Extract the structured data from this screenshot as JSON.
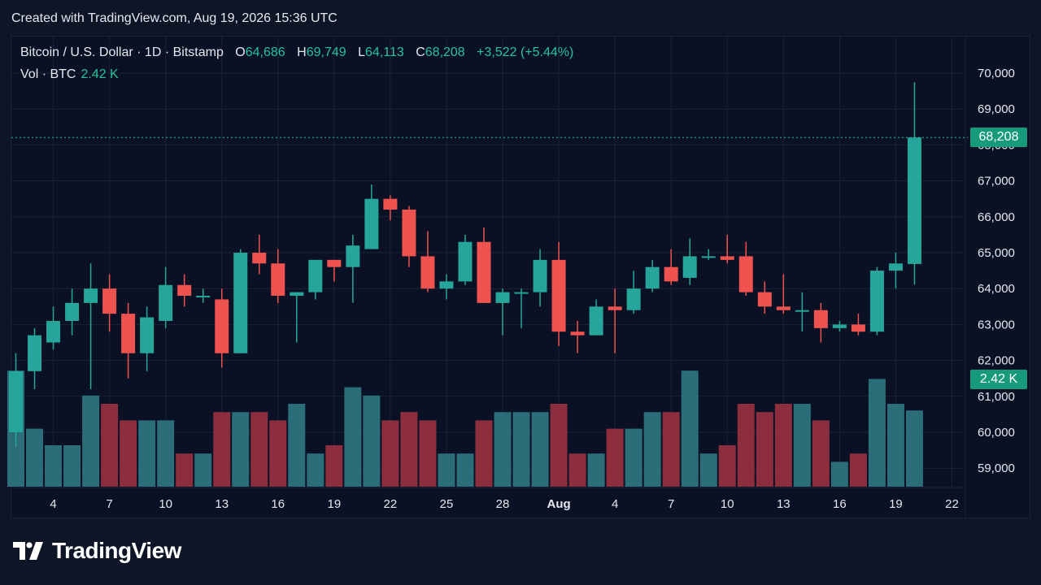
{
  "created_line": "Created with TradingView.com, Aug 19, 2026 15:36 UTC",
  "legend": {
    "symbol": "Bitcoin / U.S. Dollar · 1D · Bitstamp",
    "o_label": "O",
    "o_value": "64,686",
    "h_label": "H",
    "h_value": "69,749",
    "l_label": "L",
    "l_value": "64,113",
    "c_label": "C",
    "c_value": "68,208",
    "change": "+3,522 (+5.44%)",
    "vol_label": "Vol · BTC",
    "vol_value": "2.42 K"
  },
  "price_badge": "68,208",
  "volume_badge": "2.42 K",
  "logo_text": "TradingView",
  "colors": {
    "up": "#26a69a",
    "down": "#ef5350",
    "up_volume": "#2b6d78",
    "down_volume": "#8c2e3d",
    "background": "#0a1124",
    "price_line": "#26c49a"
  },
  "chart_data": {
    "type": "candlestick",
    "y_axis_ticks": [
      "70,000",
      "69,000",
      "68,000",
      "67,000",
      "66,000",
      "65,000",
      "64,000",
      "63,000",
      "62,000",
      "61,000",
      "60,000",
      "59,000"
    ],
    "x_axis_ticks": [
      "4",
      "7",
      "10",
      "13",
      "16",
      "19",
      "22",
      "25",
      "28",
      "Aug",
      "4",
      "7",
      "10",
      "13",
      "16",
      "19",
      "22"
    ],
    "ylim": [
      58500,
      70300
    ],
    "last_close": 68208,
    "candles": [
      {
        "o": 60000,
        "h": 62200,
        "l": 59600,
        "c": 61700,
        "v": 2.9
      },
      {
        "o": 61700,
        "h": 62900,
        "l": 61200,
        "c": 62700,
        "v": 2.2
      },
      {
        "o": 62500,
        "h": 63500,
        "l": 62300,
        "c": 63100,
        "v": 2.0
      },
      {
        "o": 63100,
        "h": 64000,
        "l": 62700,
        "c": 63600,
        "v": 2.0
      },
      {
        "o": 63600,
        "h": 64700,
        "l": 61200,
        "c": 64000,
        "v": 2.6
      },
      {
        "o": 64000,
        "h": 64400,
        "l": 62800,
        "c": 63300,
        "v": 2.5
      },
      {
        "o": 63300,
        "h": 63600,
        "l": 61500,
        "c": 62200,
        "v": 2.3
      },
      {
        "o": 62200,
        "h": 63500,
        "l": 61700,
        "c": 63200,
        "v": 2.3
      },
      {
        "o": 63100,
        "h": 64600,
        "l": 62900,
        "c": 64100,
        "v": 2.3
      },
      {
        "o": 64100,
        "h": 64400,
        "l": 63500,
        "c": 63800,
        "v": 1.9
      },
      {
        "o": 63800,
        "h": 64000,
        "l": 63600,
        "c": 63800,
        "v": 1.9
      },
      {
        "o": 63700,
        "h": 64000,
        "l": 61800,
        "c": 62200,
        "v": 2.4
      },
      {
        "o": 62200,
        "h": 65100,
        "l": 62200,
        "c": 65000,
        "v": 2.4
      },
      {
        "o": 65000,
        "h": 65500,
        "l": 64400,
        "c": 64700,
        "v": 2.4
      },
      {
        "o": 64700,
        "h": 65100,
        "l": 63600,
        "c": 63800,
        "v": 2.3
      },
      {
        "o": 63800,
        "h": 63900,
        "l": 62500,
        "c": 63900,
        "v": 2.5
      },
      {
        "o": 63900,
        "h": 64800,
        "l": 63700,
        "c": 64800,
        "v": 1.9
      },
      {
        "o": 64800,
        "h": 64800,
        "l": 64200,
        "c": 64600,
        "v": 2.0
      },
      {
        "o": 64600,
        "h": 65500,
        "l": 63600,
        "c": 65200,
        "v": 2.7
      },
      {
        "o": 65100,
        "h": 66900,
        "l": 65100,
        "c": 66500,
        "v": 2.6
      },
      {
        "o": 66500,
        "h": 66600,
        "l": 65900,
        "c": 66200,
        "v": 2.3
      },
      {
        "o": 66200,
        "h": 66300,
        "l": 64600,
        "c": 64900,
        "v": 2.4
      },
      {
        "o": 64900,
        "h": 65600,
        "l": 63900,
        "c": 64000,
        "v": 2.3
      },
      {
        "o": 64000,
        "h": 64400,
        "l": 63700,
        "c": 64200,
        "v": 1.9
      },
      {
        "o": 64200,
        "h": 65500,
        "l": 64100,
        "c": 65300,
        "v": 1.9
      },
      {
        "o": 65300,
        "h": 65700,
        "l": 63600,
        "c": 63600,
        "v": 2.3
      },
      {
        "o": 63600,
        "h": 64000,
        "l": 62700,
        "c": 63900,
        "v": 2.4
      },
      {
        "o": 63900,
        "h": 64000,
        "l": 62900,
        "c": 63900,
        "v": 2.4
      },
      {
        "o": 63900,
        "h": 65100,
        "l": 63500,
        "c": 64800,
        "v": 2.4
      },
      {
        "o": 64800,
        "h": 65300,
        "l": 62400,
        "c": 62800,
        "v": 2.5
      },
      {
        "o": 62800,
        "h": 63100,
        "l": 62200,
        "c": 62700,
        "v": 1.9
      },
      {
        "o": 62700,
        "h": 63700,
        "l": 62700,
        "c": 63500,
        "v": 1.9
      },
      {
        "o": 63500,
        "h": 64000,
        "l": 62200,
        "c": 63400,
        "v": 2.2
      },
      {
        "o": 63400,
        "h": 64500,
        "l": 63300,
        "c": 64000,
        "v": 2.2
      },
      {
        "o": 64000,
        "h": 64800,
        "l": 63900,
        "c": 64600,
        "v": 2.4
      },
      {
        "o": 64600,
        "h": 65100,
        "l": 64100,
        "c": 64200,
        "v": 2.4
      },
      {
        "o": 64300,
        "h": 65400,
        "l": 64100,
        "c": 64900,
        "v": 2.9
      },
      {
        "o": 64900,
        "h": 65100,
        "l": 64800,
        "c": 64900,
        "v": 1.9
      },
      {
        "o": 64900,
        "h": 65500,
        "l": 64700,
        "c": 64800,
        "v": 2.0
      },
      {
        "o": 64900,
        "h": 65300,
        "l": 63800,
        "c": 63900,
        "v": 2.5
      },
      {
        "o": 63900,
        "h": 64200,
        "l": 63300,
        "c": 63500,
        "v": 2.4
      },
      {
        "o": 63500,
        "h": 64400,
        "l": 63300,
        "c": 63400,
        "v": 2.5
      },
      {
        "o": 63400,
        "h": 63900,
        "l": 62800,
        "c": 63400,
        "v": 2.5
      },
      {
        "o": 63400,
        "h": 63600,
        "l": 62500,
        "c": 62900,
        "v": 2.3
      },
      {
        "o": 62900,
        "h": 63100,
        "l": 62800,
        "c": 63000,
        "v": 1.8
      },
      {
        "o": 63000,
        "h": 63300,
        "l": 62700,
        "c": 62800,
        "v": 1.9
      },
      {
        "o": 62800,
        "h": 64600,
        "l": 62700,
        "c": 64500,
        "v": 2.8
      },
      {
        "o": 64500,
        "h": 65000,
        "l": 64000,
        "c": 64700,
        "v": 2.5
      },
      {
        "o": 64686,
        "h": 69749,
        "l": 64113,
        "c": 68208,
        "v": 2.42
      }
    ]
  }
}
